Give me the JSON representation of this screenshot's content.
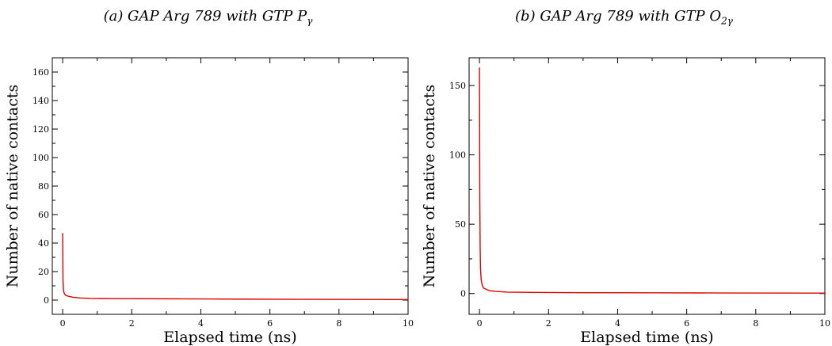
{
  "chart_data": [
    {
      "type": "line",
      "title": {
        "main": "(a) GAP Arg 789 with GTP P",
        "sub": "γ"
      },
      "xlabel": "Elapsed time (ns)",
      "ylabel": "Number of native contacts",
      "xlim": [
        -0.3,
        10
      ],
      "ylim": [
        -10,
        170
      ],
      "xticks": [
        0,
        2,
        4,
        6,
        8,
        10
      ],
      "xtick_labels": [
        "0",
        "2",
        "4",
        "6",
        "8",
        "10"
      ],
      "yticks": [
        0,
        20,
        40,
        60,
        80,
        100,
        120,
        140,
        160
      ],
      "ytick_labels": [
        "0",
        "20",
        "40",
        "60",
        "80",
        "100",
        "120",
        "140",
        "160"
      ],
      "grid": false,
      "color": "#e00000",
      "series": [
        {
          "x": [
            0.0,
            0.005,
            0.01,
            0.02,
            0.03,
            0.05,
            0.08,
            0.12,
            0.2,
            0.3,
            0.5,
            0.8,
            1.5,
            3,
            5,
            7,
            10
          ],
          "y": [
            47,
            30,
            15,
            8,
            6,
            4.5,
            3.5,
            3,
            2.5,
            2,
            1.5,
            1.2,
            1,
            0.9,
            0.7,
            0.5,
            0.4
          ]
        }
      ]
    },
    {
      "type": "line",
      "title": {
        "main": "(b) GAP Arg 789 with GTP O",
        "sub": "2γ"
      },
      "xlabel": "Elapsed time (ns)",
      "ylabel": "Number of native contacts",
      "xlim": [
        -0.3,
        10
      ],
      "ylim": [
        -15,
        170
      ],
      "xticks": [
        0,
        2,
        4,
        6,
        8,
        10
      ],
      "xtick_labels": [
        "0",
        "2",
        "4",
        "6",
        "8",
        "10"
      ],
      "yticks": [
        0,
        50,
        100,
        150
      ],
      "ytick_labels": [
        "0",
        "50",
        "100",
        "150"
      ],
      "grid": false,
      "color": "#e00000",
      "series": [
        {
          "x": [
            0.0,
            0.005,
            0.01,
            0.02,
            0.03,
            0.05,
            0.08,
            0.12,
            0.2,
            0.3,
            0.5,
            0.8,
            1.5,
            3,
            5,
            7,
            10
          ],
          "y": [
            163,
            120,
            70,
            35,
            18,
            10,
            6,
            4,
            3,
            2,
            1.5,
            1,
            0.8,
            0.6,
            0.5,
            0.4,
            0.3
          ]
        }
      ]
    }
  ]
}
